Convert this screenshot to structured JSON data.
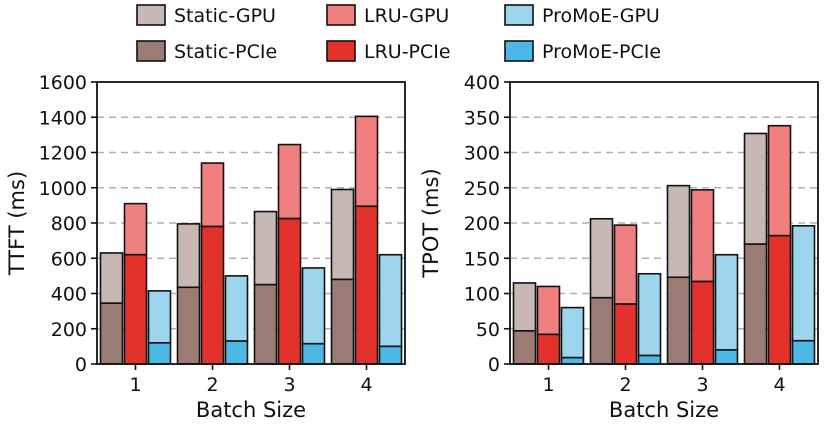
{
  "chart_data": [
    {
      "type": "bar",
      "stacked": true,
      "xlabel": "Batch Size",
      "ylabel": "TTFT (ms)",
      "categories": [
        "1",
        "2",
        "3",
        "4"
      ],
      "ylim": [
        0,
        1600
      ],
      "yticks": [
        0,
        200,
        400,
        600,
        800,
        1000,
        1200,
        1400,
        1600
      ],
      "ytick_labels": [
        "0",
        "200",
        "400",
        "600",
        "800",
        "1000",
        "1200",
        "1400",
        "1600"
      ],
      "grid": "horizontal-dashed",
      "series": [
        {
          "name": "Static",
          "pcie": [
            345,
            435,
            450,
            480
          ],
          "total": [
            630,
            795,
            865,
            990
          ]
        },
        {
          "name": "LRU",
          "pcie": [
            620,
            780,
            825,
            895
          ],
          "total": [
            910,
            1140,
            1245,
            1405
          ]
        },
        {
          "name": "ProMoE",
          "pcie": [
            120,
            130,
            115,
            100
          ],
          "total": [
            415,
            500,
            545,
            620
          ]
        }
      ]
    },
    {
      "type": "bar",
      "stacked": true,
      "xlabel": "Batch Size",
      "ylabel": "TPOT (ms)",
      "categories": [
        "1",
        "2",
        "3",
        "4"
      ],
      "ylim": [
        0,
        400
      ],
      "yticks": [
        0,
        50,
        100,
        150,
        200,
        250,
        300,
        350,
        400
      ],
      "ytick_labels": [
        "0",
        "50",
        "100",
        "150",
        "200",
        "250",
        "300",
        "350",
        "400"
      ],
      "grid": "horizontal-dashed",
      "series": [
        {
          "name": "Static",
          "pcie": [
            47,
            94,
            123,
            170
          ],
          "total": [
            115,
            206,
            253,
            327
          ]
        },
        {
          "name": "LRU",
          "pcie": [
            42,
            85,
            117,
            182
          ],
          "total": [
            110,
            197,
            247,
            338
          ]
        },
        {
          "name": "ProMoE",
          "pcie": [
            9,
            12,
            20,
            33
          ],
          "total": [
            80,
            128,
            155,
            196
          ]
        }
      ]
    }
  ],
  "legend": {
    "items": [
      {
        "label": "Static-GPU",
        "color": "#c8b8b4",
        "series": 0,
        "part": "gpu"
      },
      {
        "label": "LRU-GPU",
        "color": "#f08080",
        "series": 1,
        "part": "gpu"
      },
      {
        "label": "ProMoE-GPU",
        "color": "#9dd4ee",
        "series": 2,
        "part": "gpu"
      },
      {
        "label": "Static-PCIe",
        "color": "#9a7c74",
        "series": 0,
        "part": "pcie"
      },
      {
        "label": "LRU-PCIe",
        "color": "#e3322c",
        "series": 1,
        "part": "pcie"
      },
      {
        "label": "ProMoE-PCIe",
        "color": "#4db8e6",
        "series": 2,
        "part": "pcie"
      }
    ]
  },
  "colors": {
    "static_gpu": "#c8b8b4",
    "static_pcie": "#9a7c74",
    "lru_gpu": "#f08080",
    "lru_pcie": "#e3322c",
    "promoe_gpu": "#9dd4ee",
    "promoe_pcie": "#4db8e6",
    "edge": "#111111",
    "grid": "#b0b0b0"
  }
}
